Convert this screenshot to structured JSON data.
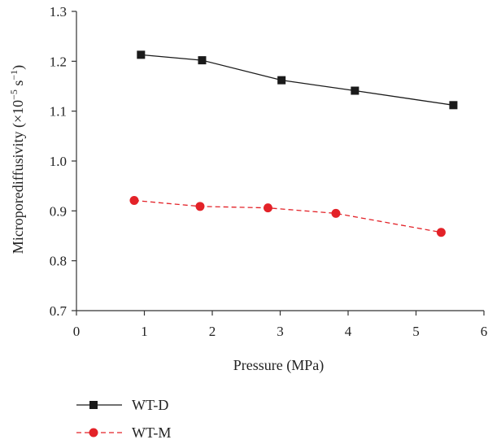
{
  "chart_data": {
    "type": "line",
    "xlabel": "Pressure (MPa)",
    "ylabel": {
      "prefix": "Microporediffusivity (×10",
      "exp1": "−5",
      "mid": " s",
      "exp2": "−1",
      "suffix": ")"
    },
    "xlim": [
      0,
      6
    ],
    "ylim": [
      0.7,
      1.3
    ],
    "xticks": [
      "0",
      "1",
      "2",
      "3",
      "4",
      "5",
      "6"
    ],
    "yticks": [
      "0.7",
      "0.8",
      "0.9",
      "1.0",
      "1.1",
      "1.2",
      "1.3"
    ],
    "grid": false,
    "legend_position": "bottom-left",
    "series": [
      {
        "name": "WT-D",
        "color": "#1a1a1a",
        "marker": "square",
        "line": "solid",
        "x": [
          0.95,
          1.85,
          3.02,
          4.1,
          5.55
        ],
        "y": [
          1.213,
          1.202,
          1.162,
          1.141,
          1.112
        ]
      },
      {
        "name": "WT-M",
        "color": "#e32228",
        "marker": "circle",
        "line": "dashed",
        "x": [
          0.85,
          1.82,
          2.82,
          3.82,
          5.37
        ],
        "y": [
          0.921,
          0.909,
          0.906,
          0.895,
          0.857
        ]
      }
    ]
  }
}
